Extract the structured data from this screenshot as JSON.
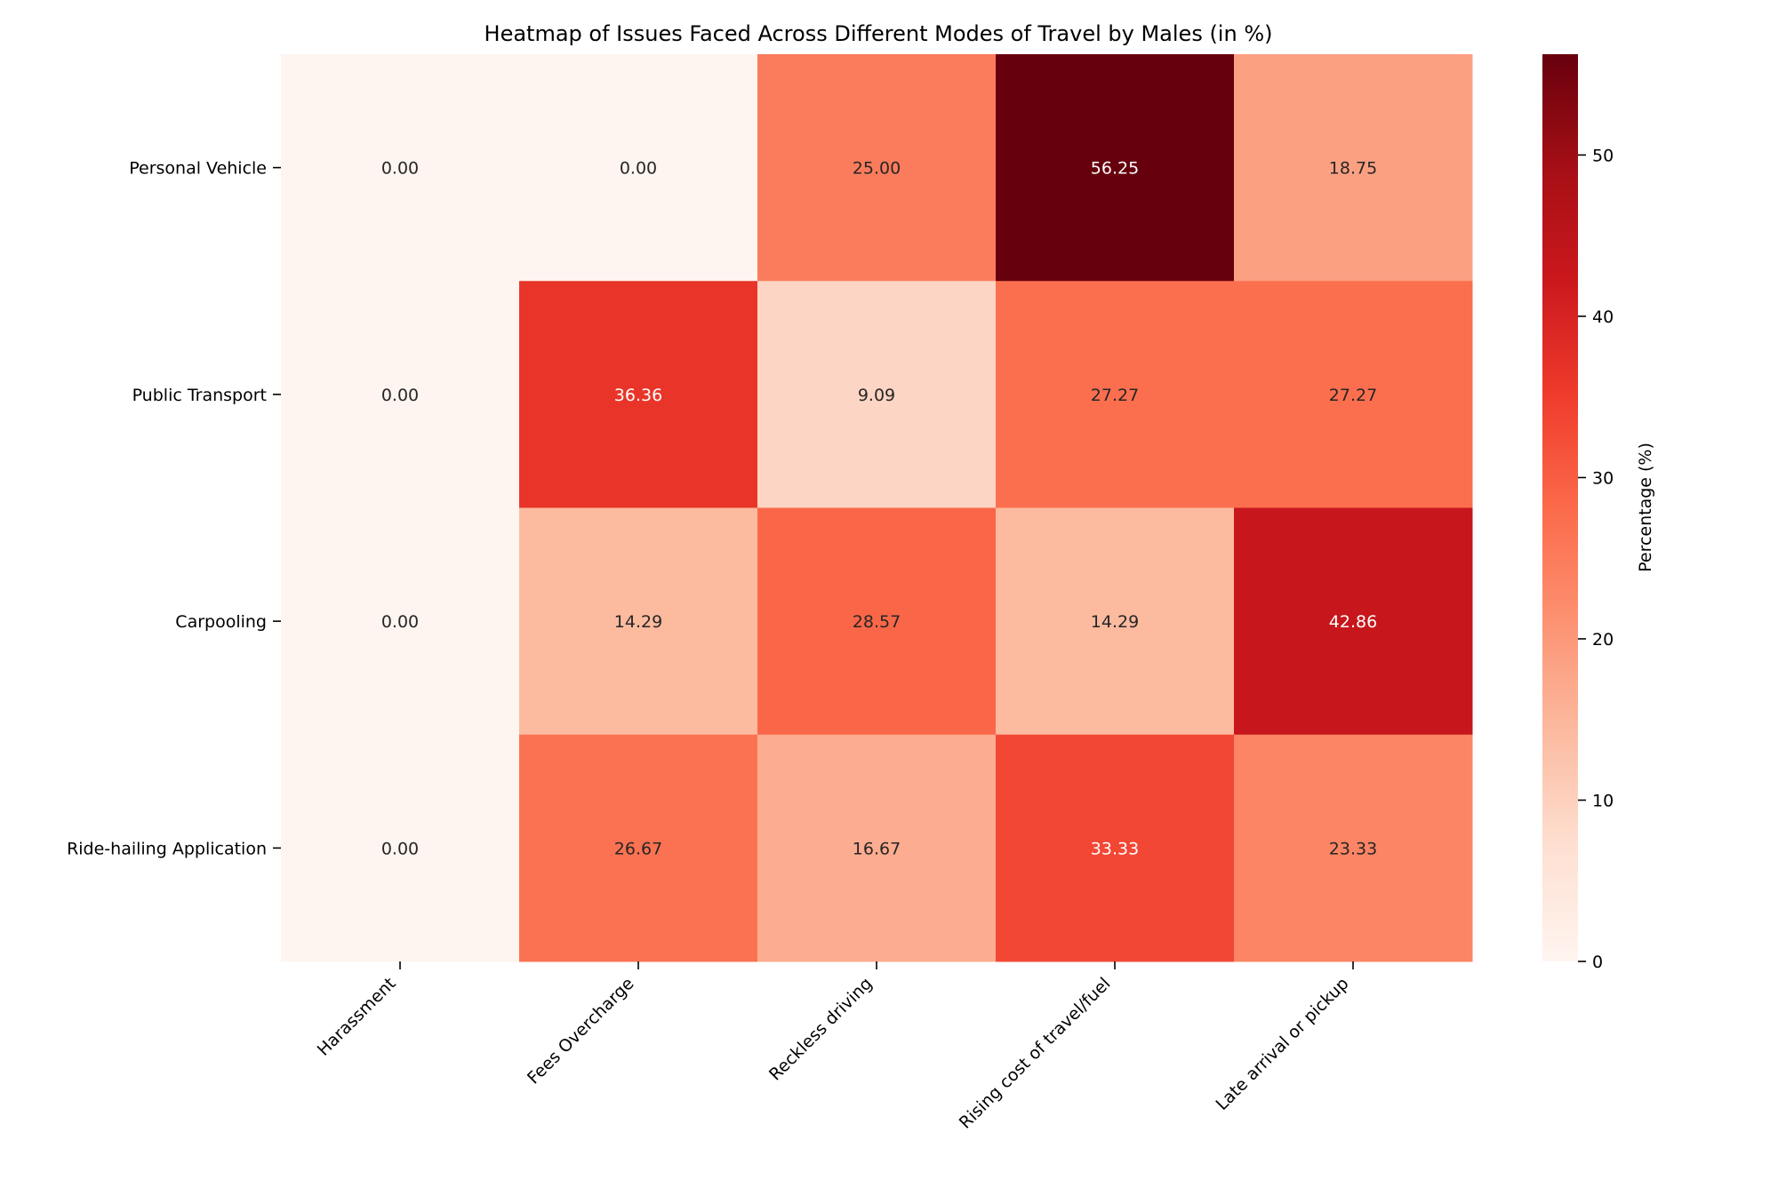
{
  "chart_data": {
    "type": "heatmap",
    "title": "Heatmap of Issues Faced Across Different Modes of Travel by Males (in %)",
    "xlabel": "",
    "ylabel": "",
    "x_categories": [
      "Harassment",
      "Fees Overcharge",
      "Reckless driving",
      "Rising cost of travel/fuel",
      "Late arrival or pickup"
    ],
    "y_categories": [
      "Personal Vehicle",
      "Public Transport",
      "Carpooling",
      "Ride-hailing Application"
    ],
    "values": [
      [
        0.0,
        0.0,
        25.0,
        56.25,
        18.75
      ],
      [
        0.0,
        36.36,
        9.09,
        27.27,
        27.27
      ],
      [
        0.0,
        14.29,
        28.57,
        14.29,
        42.86
      ],
      [
        0.0,
        26.67,
        16.67,
        33.33,
        23.33
      ]
    ],
    "value_format_decimals": 2,
    "colormap": "Reds",
    "colorbar": {
      "label": "Percentage (%)",
      "range": [
        0,
        56.25
      ],
      "ticks": [
        0,
        10,
        20,
        30,
        40,
        50
      ]
    }
  }
}
